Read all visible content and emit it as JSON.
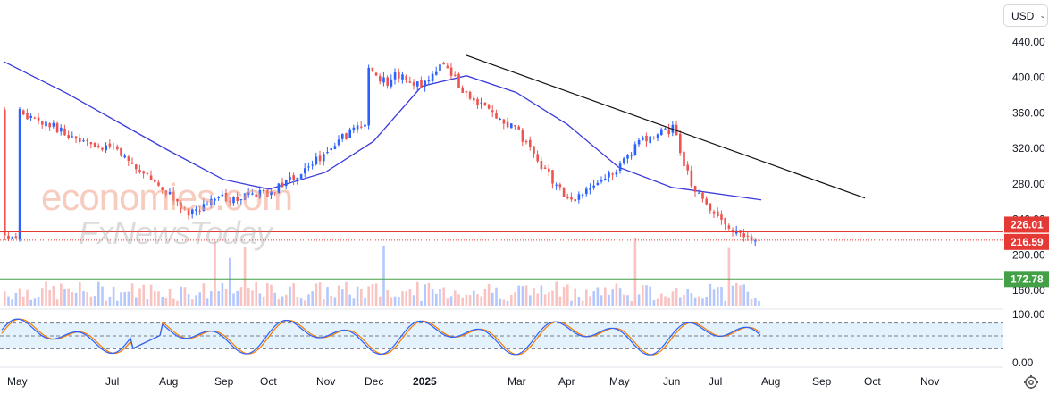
{
  "currency": {
    "label": "USD"
  },
  "watermark": {
    "line1": "economies.com",
    "line2": "FxNewsToday"
  },
  "colors": {
    "up": "#2962ff",
    "down": "#ef5350",
    "ma": "#3b3bdc",
    "trend": "#111111",
    "res": "#e53935",
    "sup": "#43a047",
    "stochK": "#2962ff",
    "stochD": "#f57c00",
    "band": "#e3f2fd"
  },
  "chart_data": [
    {
      "type": "candlestick",
      "price_axis": {
        "ticks": [
          "440.00",
          "400.00",
          "360.00",
          "320.00",
          "280.00",
          "240.00",
          "200.00",
          "160.00"
        ]
      },
      "time_axis": {
        "labels": [
          "May",
          "Jul",
          "Aug",
          "Sep",
          "Oct",
          "Nov",
          "Dec",
          "2025",
          "Mar",
          "Apr",
          "May",
          "Jun",
          "Jul",
          "Aug",
          "Sep",
          "Oct",
          "Nov"
        ]
      },
      "moving_average": [
        [
          "May",
          418
        ],
        [
          "Jun",
          382
        ],
        [
          "Jul",
          352
        ],
        [
          "Aug",
          318
        ],
        [
          "Sep",
          285
        ],
        [
          "Oct",
          274
        ],
        [
          "Nov",
          293
        ],
        [
          "Dec",
          328
        ],
        [
          "Jan",
          390
        ],
        [
          "Feb",
          402
        ],
        [
          "Mar",
          383
        ],
        [
          "Apr",
          347
        ],
        [
          "May",
          299
        ],
        [
          "Jun",
          276
        ],
        [
          "Jul",
          262
        ]
      ],
      "close_path": [
        [
          "May",
          363
        ],
        [
          "Jun",
          336
        ],
        [
          "Jul",
          318
        ],
        [
          "Aug",
          268
        ],
        [
          "Aug",
          248
        ],
        [
          "Sep",
          264
        ],
        [
          "Oct",
          270
        ],
        [
          "Nov",
          315
        ],
        [
          "Nov",
          335
        ],
        [
          "Dec",
          355
        ],
        [
          "Dec",
          402
        ],
        [
          "Jan",
          390
        ],
        [
          "Jan",
          420
        ],
        [
          "Feb",
          378
        ],
        [
          "Mar",
          340
        ],
        [
          "Mar",
          308
        ],
        [
          "Apr",
          258
        ],
        [
          "Apr",
          272
        ],
        [
          "May",
          298
        ],
        [
          "May",
          329
        ],
        [
          "Jun",
          342
        ],
        [
          "Jun",
          274
        ],
        [
          "Jul",
          238
        ],
        [
          "Jul",
          222
        ],
        [
          "Jul",
          218
        ]
      ],
      "trendline": {
        "from": [
          "Feb",
          425
        ],
        "to": [
          "Sep",
          264
        ]
      },
      "levels": [
        {
          "value": "226.01",
          "type": "resistance"
        },
        {
          "value": "216.59",
          "type": "current"
        },
        {
          "value": "172.78",
          "type": "support"
        }
      ],
      "volume": "bars"
    },
    {
      "type": "stochastic",
      "axis_ticks": [
        "100.00",
        "0.00"
      ],
      "band": [
        20,
        80
      ]
    }
  ]
}
